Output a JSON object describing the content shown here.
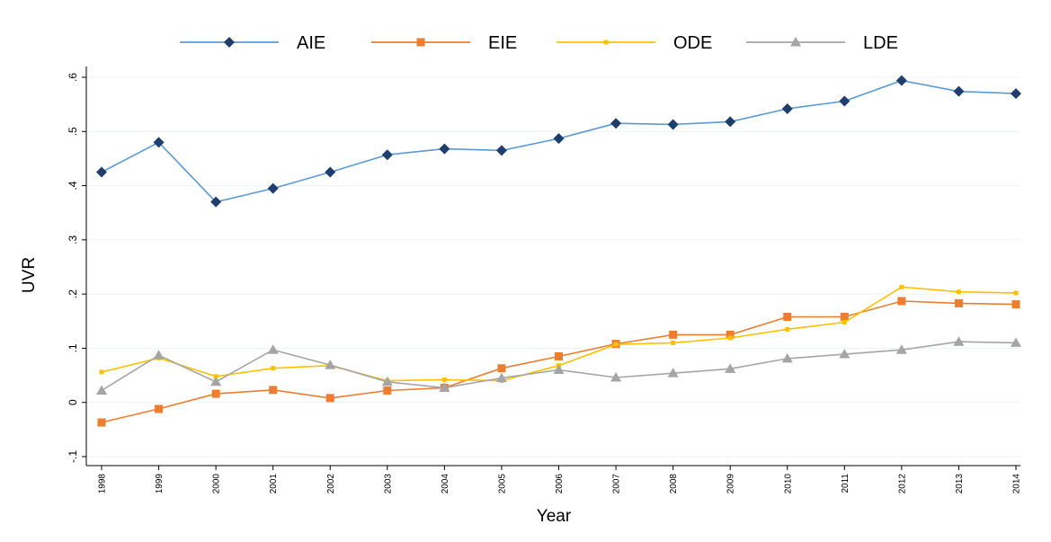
{
  "chart_data": {
    "type": "line",
    "title": "",
    "xlabel": "Year",
    "ylabel": "UVR",
    "ylim": [
      -0.1,
      0.6
    ],
    "y_ticks": [
      -0.1,
      0,
      0.1,
      0.2,
      0.3,
      0.4,
      0.5,
      0.6
    ],
    "y_tick_labels": [
      "-.1",
      "0",
      ".1",
      ".2",
      ".3",
      ".4",
      ".5",
      ".6"
    ],
    "grid": true,
    "legend_position": "top",
    "x": [
      "1998",
      "1999",
      "2000",
      "2001",
      "2002",
      "2003",
      "2004",
      "2005",
      "2006",
      "2007",
      "2008",
      "2009",
      "2010",
      "2011",
      "2012",
      "2013",
      "2014"
    ],
    "series": [
      {
        "name": "AIE",
        "color": "#5b9bd5",
        "marker_color": "#1f3e6e",
        "marker": "diamond",
        "values": [
          0.425,
          0.48,
          0.37,
          0.395,
          0.425,
          0.457,
          0.468,
          0.465,
          0.487,
          0.515,
          0.513,
          0.518,
          0.542,
          0.556,
          0.594,
          0.574,
          0.57
        ]
      },
      {
        "name": "EIE",
        "color": "#ed7d31",
        "marker_color": "#ed7d31",
        "marker": "square",
        "values": [
          -0.037,
          -0.012,
          0.016,
          0.023,
          0.008,
          0.022,
          0.027,
          0.063,
          0.085,
          0.108,
          0.125,
          0.125,
          0.158,
          0.158,
          0.187,
          0.183,
          0.181
        ]
      },
      {
        "name": "ODE",
        "color": "#ffc000",
        "marker_color": "#ffc000",
        "marker": "star",
        "values": [
          0.056,
          0.082,
          0.048,
          0.063,
          0.068,
          0.04,
          0.042,
          0.04,
          0.068,
          0.107,
          0.11,
          0.119,
          0.135,
          0.148,
          0.213,
          0.204,
          0.202
        ]
      },
      {
        "name": "LDE",
        "color": "#a5a5a5",
        "marker_color": "#a5a5a5",
        "marker": "triangle",
        "values": [
          0.022,
          0.087,
          0.038,
          0.097,
          0.069,
          0.038,
          0.027,
          0.045,
          0.06,
          0.046,
          0.054,
          0.062,
          0.081,
          0.089,
          0.097,
          0.112,
          0.11
        ]
      }
    ]
  }
}
